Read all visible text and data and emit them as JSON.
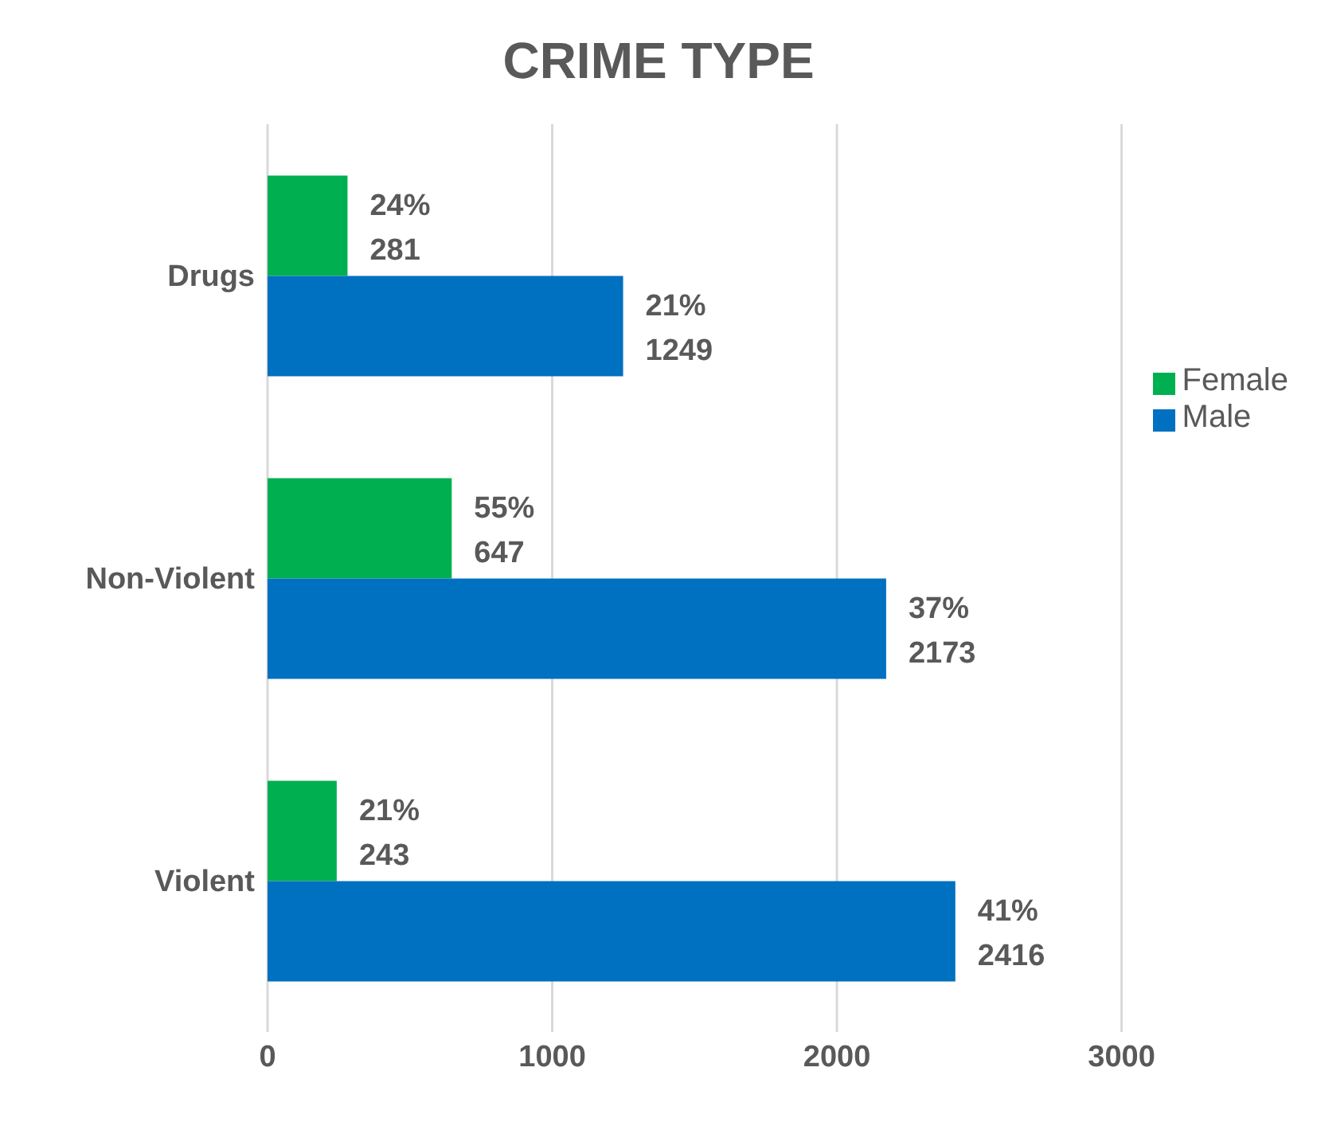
{
  "chart_data": {
    "type": "bar",
    "orientation": "horizontal",
    "title": "CRIME TYPE",
    "categories": [
      "Drugs",
      "Non-Violent",
      "Violent"
    ],
    "series": [
      {
        "name": "Female",
        "color": "#00b050",
        "values": [
          281,
          647,
          243
        ],
        "value_labels": [
          "24%\n281",
          "55%\n647",
          "21%\n243"
        ]
      },
      {
        "name": "Male",
        "color": "#0070c0",
        "values": [
          1249,
          2173,
          2416
        ],
        "value_labels": [
          "21%\n1249",
          "37%\n2173",
          "41%\n2416"
        ]
      }
    ],
    "xlim": [
      0,
      3000
    ],
    "xticks": [
      0,
      1000,
      2000,
      3000
    ],
    "grid": "x",
    "legend": "right"
  }
}
